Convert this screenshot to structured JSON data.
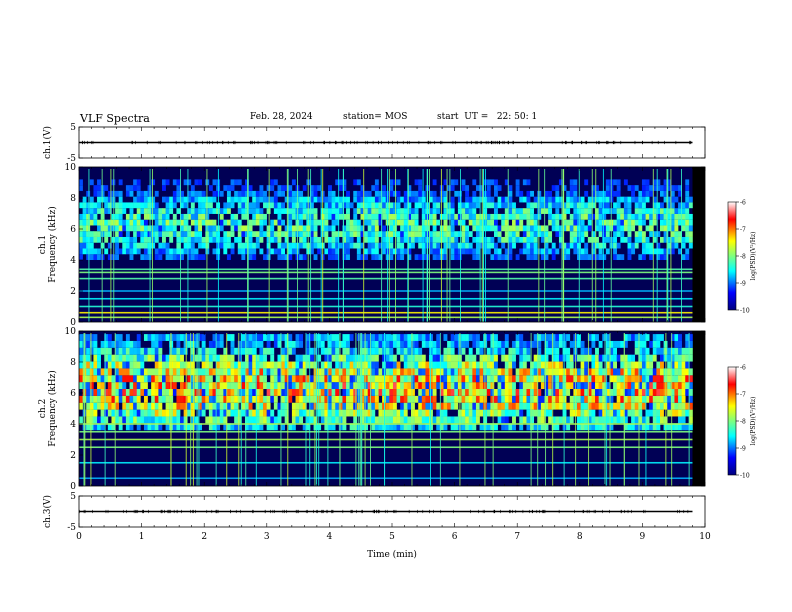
{
  "header": {
    "title": "VLF Spectra",
    "date": "Feb. 28, 2024",
    "station": "station= MOS",
    "start": "start  UT =   22: 50: 1"
  },
  "chart_data": [
    {
      "type": "line",
      "panel": "ch1-waveform",
      "ylabel": "ch.1(V)",
      "ylim": [
        -5,
        5
      ],
      "yticks": [
        "5",
        "-5"
      ],
      "x": [
        0,
        10
      ],
      "values": [
        0,
        0
      ],
      "grid": false
    },
    {
      "type": "heatmap",
      "panel": "ch1-spectrogram",
      "ylabel": "ch.1\nFrequency (kHz)",
      "ylabel_lines": [
        "ch.1",
        "Frequency (kHz)"
      ],
      "ylim": [
        0,
        10
      ],
      "yticks": [
        "0",
        "2",
        "4",
        "6",
        "8",
        "10"
      ],
      "xlim": [
        0,
        10
      ],
      "data_end_min": 9.8,
      "colorbar": {
        "label": "log(PSD)(V²/Hz)",
        "range": [
          -10,
          -6
        ],
        "ticks": [
          "-6",
          "-7",
          "-8",
          "-9",
          "-10"
        ],
        "colors": [
          "#00007f",
          "#0000ff",
          "#00ffff",
          "#7fff7f",
          "#ffff00",
          "#ff0000",
          "#ffffff"
        ]
      },
      "bands": [
        {
          "freq_khz": 0.3,
          "level": 0.55
        },
        {
          "freq_khz": 0.6,
          "level": 0.65
        },
        {
          "freq_khz": 1.0,
          "level": 0.4
        },
        {
          "freq_khz": 1.5,
          "level": 0.35
        },
        {
          "freq_khz": 2.0,
          "level": 0.3
        },
        {
          "freq_khz": 2.8,
          "level": 0.45
        },
        {
          "freq_khz": 3.2,
          "level": 0.5
        },
        {
          "freq_khz": 3.4,
          "level": 0.45
        }
      ],
      "emission_band_khz": [
        4.0,
        9.2
      ],
      "intensity": 0.5
    },
    {
      "type": "heatmap",
      "panel": "ch2-spectrogram",
      "ylabel": "ch.2\nFrequency (kHz)",
      "ylabel_lines": [
        "ch.2",
        "Frequency (kHz)"
      ],
      "ylim": [
        0,
        10
      ],
      "yticks": [
        "0",
        "2",
        "4",
        "6",
        "8",
        "10"
      ],
      "xlim": [
        0,
        10
      ],
      "data_end_min": 9.8,
      "colorbar": {
        "label": "log(PSD)(V²/Hz)",
        "range": [
          -10,
          -6
        ],
        "ticks": [
          "-6",
          "-7",
          "-8",
          "-9",
          "-10"
        ],
        "colors": [
          "#00007f",
          "#0000ff",
          "#00ffff",
          "#7fff7f",
          "#ffff00",
          "#ff0000",
          "#ffffff"
        ]
      },
      "bands": [
        {
          "freq_khz": 0.5,
          "level": 0.3
        },
        {
          "freq_khz": 1.5,
          "level": 0.35
        },
        {
          "freq_khz": 2.5,
          "level": 0.5
        },
        {
          "freq_khz": 3.0,
          "level": 0.55
        },
        {
          "freq_khz": 3.5,
          "level": 0.5
        },
        {
          "freq_khz": 4.0,
          "level": 0.55
        }
      ],
      "emission_band_khz": [
        3.6,
        9.8
      ],
      "intensity": 0.78
    },
    {
      "type": "line",
      "panel": "ch3-waveform",
      "ylabel": "ch.3(V)",
      "ylim": [
        -5,
        5
      ],
      "yticks": [
        "5",
        "-5"
      ],
      "x": [
        0,
        10
      ],
      "values": [
        0,
        0
      ],
      "grid": false
    }
  ],
  "xaxis": {
    "label": "Time (min)",
    "ticks": [
      "0",
      "1",
      "2",
      "3",
      "4",
      "5",
      "6",
      "7",
      "8",
      "9",
      "10"
    ]
  }
}
